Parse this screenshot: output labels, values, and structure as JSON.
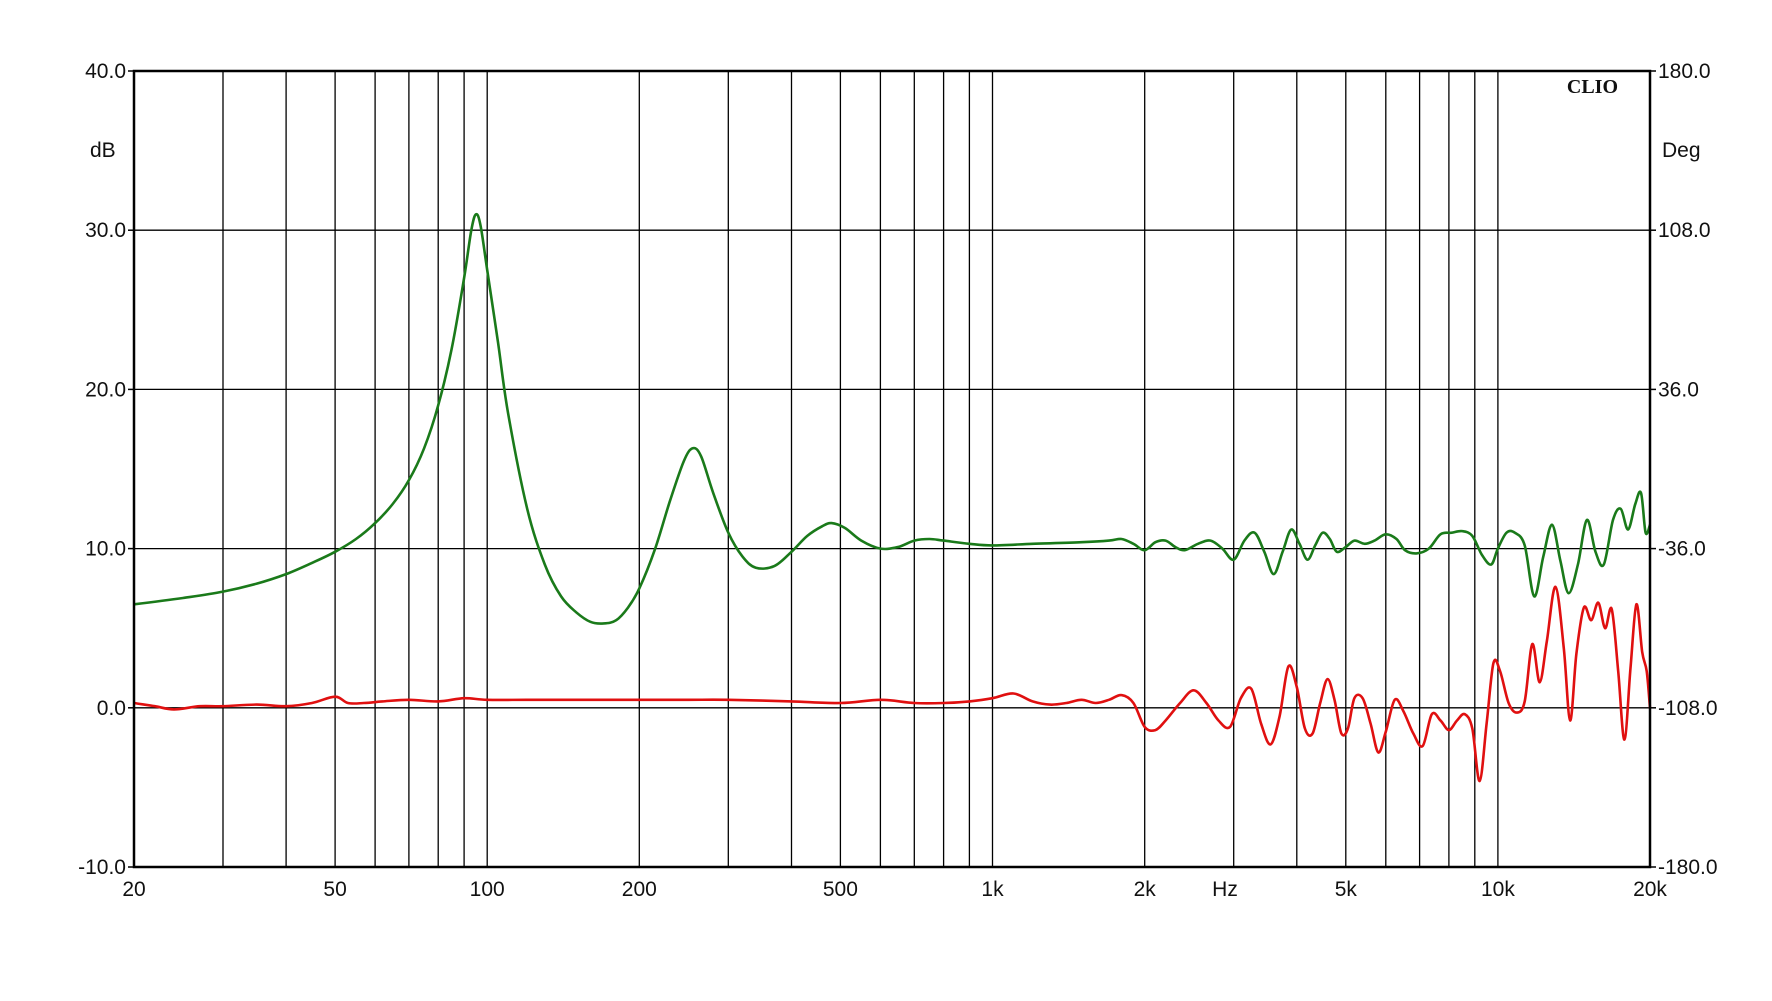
{
  "chart_data": {
    "type": "line",
    "brand": "CLIO",
    "xlabel": "Hz",
    "ylabel_left": "dB",
    "ylabel_right": "Deg",
    "x_scale": "log",
    "xlim": [
      20,
      20000
    ],
    "ylim_left": [
      -10,
      40
    ],
    "ylim_right": [
      -180,
      180
    ],
    "grid": true,
    "x_tick_labels": [
      {
        "value": 20,
        "label": "20"
      },
      {
        "value": 50,
        "label": "50"
      },
      {
        "value": 100,
        "label": "100"
      },
      {
        "value": 200,
        "label": "200"
      },
      {
        "value": 500,
        "label": "500"
      },
      {
        "value": 1000,
        "label": "1k"
      },
      {
        "value": 2000,
        "label": "2k"
      },
      {
        "value": 5000,
        "label": "5k"
      },
      {
        "value": 10000,
        "label": "10k"
      },
      {
        "value": 20000,
        "label": "20k"
      }
    ],
    "y_left_ticks": [
      "-10.0",
      "0.0",
      "10.0",
      "20.0",
      "30.0",
      "40.0"
    ],
    "y_right_ticks": [
      "-180.0",
      "-108.0",
      "-36.0",
      "36.0",
      "108.0",
      "180.0"
    ],
    "series": [
      {
        "axis": "left",
        "color": "#1a7a1a",
        "points": [
          [
            20,
            6.5
          ],
          [
            25,
            6.9
          ],
          [
            30,
            7.3
          ],
          [
            35,
            7.8
          ],
          [
            40,
            8.4
          ],
          [
            45,
            9.1
          ],
          [
            50,
            9.8
          ],
          [
            55,
            10.6
          ],
          [
            60,
            11.6
          ],
          [
            65,
            12.8
          ],
          [
            70,
            14.3
          ],
          [
            75,
            16.3
          ],
          [
            80,
            19.0
          ],
          [
            85,
            22.5
          ],
          [
            90,
            27.0
          ],
          [
            93,
            30.0
          ],
          [
            95,
            31.0
          ],
          [
            97,
            30.3
          ],
          [
            100,
            27.5
          ],
          [
            105,
            23.0
          ],
          [
            110,
            18.5
          ],
          [
            120,
            12.5
          ],
          [
            130,
            9.0
          ],
          [
            140,
            7.0
          ],
          [
            150,
            6.0
          ],
          [
            160,
            5.4
          ],
          [
            170,
            5.3
          ],
          [
            180,
            5.5
          ],
          [
            190,
            6.3
          ],
          [
            200,
            7.5
          ],
          [
            215,
            10.0
          ],
          [
            230,
            13.0
          ],
          [
            245,
            15.5
          ],
          [
            255,
            16.3
          ],
          [
            265,
            15.8
          ],
          [
            280,
            13.5
          ],
          [
            300,
            11.0
          ],
          [
            320,
            9.5
          ],
          [
            340,
            8.8
          ],
          [
            370,
            8.9
          ],
          [
            400,
            9.8
          ],
          [
            430,
            10.8
          ],
          [
            460,
            11.4
          ],
          [
            480,
            11.6
          ],
          [
            510,
            11.3
          ],
          [
            550,
            10.5
          ],
          [
            600,
            10.0
          ],
          [
            650,
            10.1
          ],
          [
            700,
            10.5
          ],
          [
            750,
            10.6
          ],
          [
            800,
            10.5
          ],
          [
            900,
            10.3
          ],
          [
            1000,
            10.2
          ],
          [
            1200,
            10.3
          ],
          [
            1500,
            10.4
          ],
          [
            1700,
            10.5
          ],
          [
            1800,
            10.6
          ],
          [
            1900,
            10.3
          ],
          [
            2000,
            9.9
          ],
          [
            2100,
            10.4
          ],
          [
            2200,
            10.5
          ],
          [
            2300,
            10.1
          ],
          [
            2400,
            9.9
          ],
          [
            2550,
            10.3
          ],
          [
            2700,
            10.5
          ],
          [
            2850,
            10.0
          ],
          [
            3000,
            9.3
          ],
          [
            3150,
            10.5
          ],
          [
            3300,
            11.0
          ],
          [
            3450,
            9.8
          ],
          [
            3600,
            8.4
          ],
          [
            3750,
            9.8
          ],
          [
            3900,
            11.2
          ],
          [
            4050,
            10.3
          ],
          [
            4200,
            9.3
          ],
          [
            4350,
            10.2
          ],
          [
            4500,
            11.0
          ],
          [
            4650,
            10.6
          ],
          [
            4800,
            9.8
          ],
          [
            5000,
            10.1
          ],
          [
            5200,
            10.5
          ],
          [
            5450,
            10.3
          ],
          [
            5700,
            10.5
          ],
          [
            6000,
            10.9
          ],
          [
            6300,
            10.6
          ],
          [
            6550,
            9.9
          ],
          [
            6900,
            9.7
          ],
          [
            7300,
            10.0
          ],
          [
            7700,
            10.9
          ],
          [
            8100,
            11.0
          ],
          [
            8500,
            11.1
          ],
          [
            8900,
            10.8
          ],
          [
            9300,
            9.6
          ],
          [
            9700,
            9.0
          ],
          [
            10000,
            10.0
          ],
          [
            10400,
            11.0
          ],
          [
            10800,
            11.0
          ],
          [
            11300,
            10.2
          ],
          [
            11800,
            7.0
          ],
          [
            12300,
            9.5
          ],
          [
            12800,
            11.5
          ],
          [
            13300,
            9.2
          ],
          [
            13800,
            7.2
          ],
          [
            14400,
            9.0
          ],
          [
            15000,
            11.8
          ],
          [
            15600,
            9.8
          ],
          [
            16200,
            9.0
          ],
          [
            16900,
            11.8
          ],
          [
            17500,
            12.5
          ],
          [
            18100,
            11.2
          ],
          [
            18700,
            12.8
          ],
          [
            19200,
            13.5
          ],
          [
            19600,
            11.0
          ],
          [
            20000,
            11.5
          ]
        ]
      },
      {
        "axis": "left",
        "color": "#e01010",
        "points": [
          [
            20,
            0.3
          ],
          [
            22,
            0.1
          ],
          [
            24,
            -0.1
          ],
          [
            27,
            0.1
          ],
          [
            30,
            0.1
          ],
          [
            35,
            0.2
          ],
          [
            40,
            0.1
          ],
          [
            45,
            0.3
          ],
          [
            50,
            0.7
          ],
          [
            53,
            0.3
          ],
          [
            57,
            0.3
          ],
          [
            62,
            0.4
          ],
          [
            70,
            0.5
          ],
          [
            80,
            0.4
          ],
          [
            90,
            0.6
          ],
          [
            100,
            0.5
          ],
          [
            120,
            0.5
          ],
          [
            150,
            0.5
          ],
          [
            200,
            0.5
          ],
          [
            250,
            0.5
          ],
          [
            300,
            0.5
          ],
          [
            400,
            0.4
          ],
          [
            500,
            0.3
          ],
          [
            600,
            0.5
          ],
          [
            700,
            0.3
          ],
          [
            800,
            0.3
          ],
          [
            900,
            0.4
          ],
          [
            1000,
            0.6
          ],
          [
            1100,
            0.9
          ],
          [
            1200,
            0.4
          ],
          [
            1300,
            0.2
          ],
          [
            1400,
            0.3
          ],
          [
            1500,
            0.5
          ],
          [
            1600,
            0.3
          ],
          [
            1700,
            0.5
          ],
          [
            1800,
            0.8
          ],
          [
            1900,
            0.3
          ],
          [
            2000,
            -1.2
          ],
          [
            2100,
            -1.4
          ],
          [
            2200,
            -0.8
          ],
          [
            2350,
            0.3
          ],
          [
            2500,
            1.1
          ],
          [
            2650,
            0.3
          ],
          [
            2800,
            -0.8
          ],
          [
            2950,
            -1.2
          ],
          [
            3100,
            0.6
          ],
          [
            3250,
            1.2
          ],
          [
            3400,
            -1.0
          ],
          [
            3550,
            -2.3
          ],
          [
            3700,
            -0.5
          ],
          [
            3850,
            2.6
          ],
          [
            4000,
            1.3
          ],
          [
            4150,
            -1.3
          ],
          [
            4300,
            -1.6
          ],
          [
            4450,
            0.3
          ],
          [
            4600,
            1.8
          ],
          [
            4750,
            0.5
          ],
          [
            4900,
            -1.6
          ],
          [
            5050,
            -1.3
          ],
          [
            5200,
            0.6
          ],
          [
            5400,
            0.6
          ],
          [
            5600,
            -1.0
          ],
          [
            5800,
            -2.8
          ],
          [
            6000,
            -1.5
          ],
          [
            6250,
            0.5
          ],
          [
            6500,
            -0.2
          ],
          [
            6800,
            -1.6
          ],
          [
            7100,
            -2.4
          ],
          [
            7400,
            -0.4
          ],
          [
            7700,
            -0.8
          ],
          [
            8000,
            -1.4
          ],
          [
            8300,
            -0.8
          ],
          [
            8600,
            -0.4
          ],
          [
            8900,
            -1.3
          ],
          [
            9200,
            -4.6
          ],
          [
            9500,
            -1.0
          ],
          [
            9800,
            2.8
          ],
          [
            10100,
            2.3
          ],
          [
            10500,
            0.3
          ],
          [
            10900,
            -0.3
          ],
          [
            11300,
            0.4
          ],
          [
            11700,
            4.0
          ],
          [
            12100,
            1.6
          ],
          [
            12500,
            4.2
          ],
          [
            13000,
            7.6
          ],
          [
            13500,
            3.8
          ],
          [
            13900,
            -0.8
          ],
          [
            14300,
            3.4
          ],
          [
            14800,
            6.3
          ],
          [
            15300,
            5.5
          ],
          [
            15800,
            6.6
          ],
          [
            16300,
            5.0
          ],
          [
            16800,
            6.2
          ],
          [
            17300,
            2.3
          ],
          [
            17800,
            -2.0
          ],
          [
            18300,
            2.5
          ],
          [
            18800,
            6.5
          ],
          [
            19300,
            3.5
          ],
          [
            19700,
            2.3
          ],
          [
            20000,
            0.0
          ]
        ]
      }
    ]
  }
}
